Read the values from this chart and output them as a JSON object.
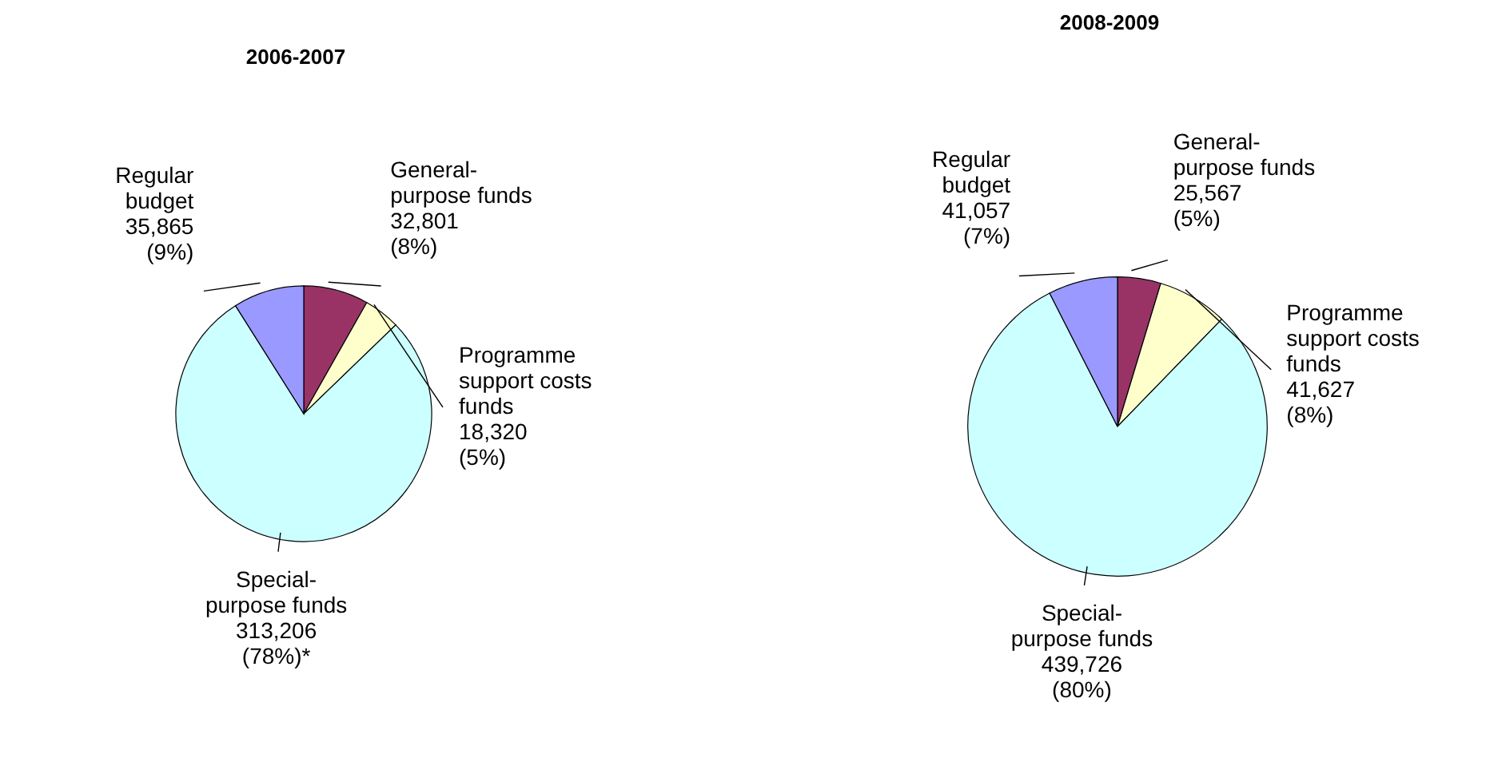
{
  "chart_data": [
    {
      "type": "pie",
      "title": "2006-2007",
      "categories": [
        "General-purpose funds",
        "Programme support costs funds",
        "Special-purpose funds",
        "Regular budget"
      ],
      "values": [
        32801,
        18320,
        313206,
        35865
      ],
      "colors": [
        "#993366",
        "#ffffcc",
        "#ccffff",
        "#9999ff"
      ],
      "value_labels": [
        "32,801\n(8%)",
        "18,320\n(5%)",
        "313,206\n(78%)*",
        "35,865\n(9%)"
      ]
    },
    {
      "type": "pie",
      "title": "2008-2009",
      "categories": [
        "General-purpose funds",
        "Programme support costs funds",
        "Special-purpose funds",
        "Regular budget"
      ],
      "values": [
        25567,
        41627,
        439726,
        41057
      ],
      "colors": [
        "#993366",
        "#ffffcc",
        "#ccffff",
        "#9999ff"
      ],
      "value_labels": [
        "25,567\n(5%)",
        "41,627\n(8%)",
        "439,726\n(80%)",
        "41,057\n(7%)"
      ]
    }
  ]
}
